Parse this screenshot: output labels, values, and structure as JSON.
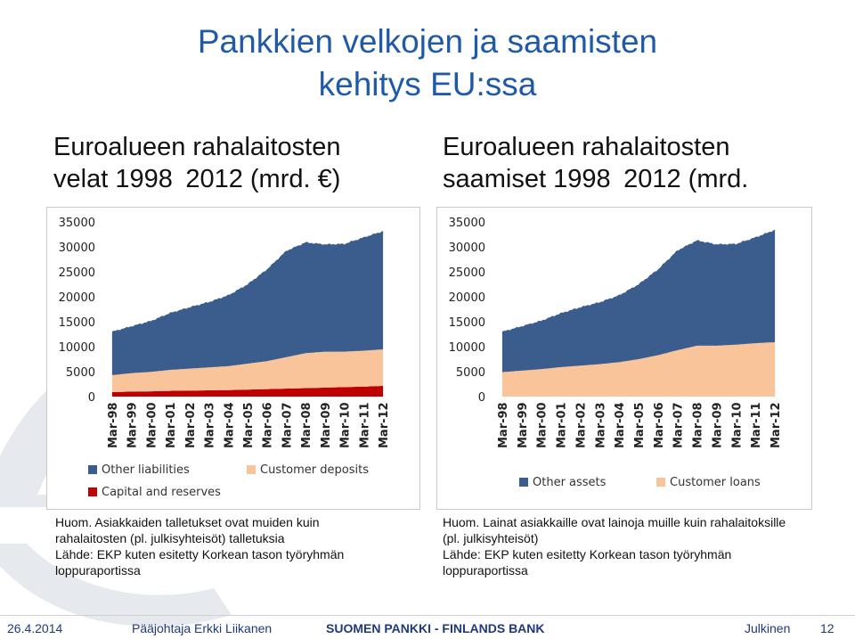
{
  "slide": {
    "title_line1": "Pankkien velkojen ja saamisten",
    "title_line2": "kehitys EU:ssa",
    "left_heading_line1": "Euroalueen rahalaitosten",
    "left_heading_line2": "velat 1998 2012 (mrd. €)",
    "right_heading_line1": "Euroalueen rahalaitosten",
    "right_heading_line2": "saamiset 1998 2012 (mrd.",
    "left_note": [
      "Huom. Asiakkaiden talletukset ovat  muiden kuin",
      "rahalaitosten (pl. julkisyhteisöt) talletuksia",
      "Lähde: EKP kuten esitetty Korkean tason työryhmän",
      "loppuraportissa"
    ],
    "right_note": [
      "Huom. Lainat asiakkaille ovat lainoja muille kuin rahalaitoksille",
      "(pl. julkisyhteisöt)",
      "Lähde: EKP kuten esitetty Korkean tason työryhmän",
      "loppuraportissa"
    ],
    "footer_date": "26.4.2014",
    "footer_presenter": "Pääjohtaja Erkki Liikanen",
    "footer_org": "SUOMEN PANKKI - FINLANDS BANK",
    "footer_class": "Julkinen",
    "footer_page": "12"
  },
  "colors": {
    "title": "#1f5aa8",
    "blue_series": "#3a5d8e",
    "peach_series": "#f9c49a",
    "red_series": "#c00000",
    "watermark": "#e6e9ee"
  },
  "chart_data": [
    {
      "type": "area",
      "stacked": true,
      "x": [
        "Mar-98",
        "Mar-99",
        "Mar-00",
        "Mar-01",
        "Mar-02",
        "Mar-03",
        "Mar-04",
        "Mar-05",
        "Mar-06",
        "Mar-07",
        "Mar-08",
        "Mar-09",
        "Mar-10",
        "Mar-11",
        "Mar-12"
      ],
      "series": [
        {
          "name": "Capital and reserves",
          "color": "#c00000",
          "values": [
            900,
            1000,
            1050,
            1150,
            1200,
            1250,
            1300,
            1400,
            1500,
            1600,
            1700,
            1800,
            1900,
            2000,
            2150
          ]
        },
        {
          "name": "Customer deposits",
          "color": "#f9c49a",
          "values": [
            3400,
            3700,
            3900,
            4200,
            4400,
            4600,
            4800,
            5200,
            5600,
            6300,
            7000,
            7200,
            7100,
            7200,
            7300
          ]
        },
        {
          "name": "Other liabilities",
          "color": "#3a5d8e",
          "values": [
            8700,
            9400,
            10200,
            11400,
            12300,
            13100,
            14200,
            15900,
            18400,
            21300,
            22200,
            21500,
            21600,
            22700,
            23700
          ]
        }
      ],
      "ylim": [
        0,
        35000
      ],
      "yticks": [
        0,
        5000,
        10000,
        15000,
        20000,
        25000,
        30000,
        35000
      ],
      "legend_order": [
        "Other liabilities",
        "Customer deposits",
        "Capital and reserves"
      ],
      "legend": "bottom"
    },
    {
      "type": "area",
      "stacked": true,
      "x": [
        "Mar-98",
        "Mar-99",
        "Mar-00",
        "Mar-01",
        "Mar-02",
        "Mar-03",
        "Mar-04",
        "Mar-05",
        "Mar-06",
        "Mar-07",
        "Mar-08",
        "Mar-09",
        "Mar-10",
        "Mar-11",
        "Mar-12"
      ],
      "series": [
        {
          "name": "Customer loans",
          "color": "#f9c49a",
          "values": [
            4900,
            5200,
            5500,
            5900,
            6200,
            6500,
            6900,
            7500,
            8300,
            9300,
            10200,
            10200,
            10400,
            10700,
            10900
          ]
        },
        {
          "name": "Other assets",
          "color": "#3a5d8e",
          "values": [
            8100,
            8900,
            9700,
            10800,
            11700,
            12400,
            13400,
            15000,
            17200,
            20000,
            21100,
            20300,
            20200,
            21200,
            22500
          ]
        }
      ],
      "ylim": [
        0,
        35000
      ],
      "yticks": [
        0,
        5000,
        10000,
        15000,
        20000,
        25000,
        30000,
        35000
      ],
      "legend_order": [
        "Other assets",
        "Customer loans"
      ],
      "legend": "bottom"
    }
  ]
}
